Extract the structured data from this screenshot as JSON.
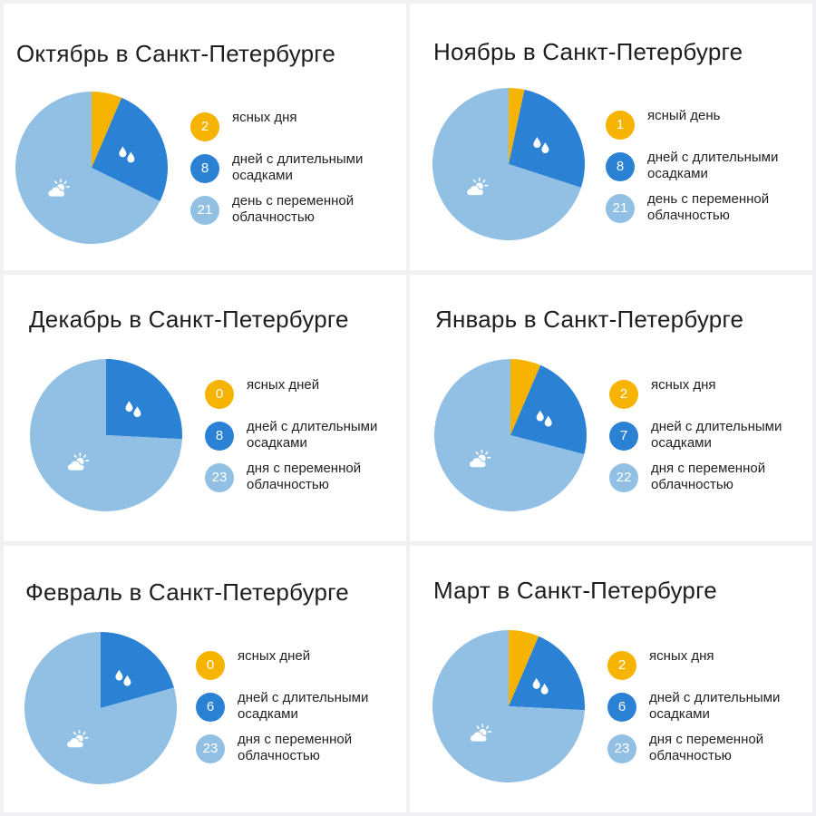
{
  "colors": {
    "sunny": "#f6b400",
    "rain": "#2b82d5",
    "cloudy": "#92c0e4"
  },
  "chart_data": [
    {
      "type": "pie",
      "title": "Октябрь в Санкт-Петербурге",
      "categories": [
        "sunny",
        "rain",
        "cloudy"
      ],
      "values": [
        2,
        8,
        21
      ],
      "legend": [
        {
          "value": "2",
          "text": "ясных дня"
        },
        {
          "value": "8",
          "text": "дней с длительными осадками"
        },
        {
          "value": "21",
          "text": "день с переменной облачностью"
        }
      ]
    },
    {
      "type": "pie",
      "title": "Ноябрь в Санкт-Петербурге",
      "categories": [
        "sunny",
        "rain",
        "cloudy"
      ],
      "values": [
        1,
        8,
        21
      ],
      "legend": [
        {
          "value": "1",
          "text": "ясный день"
        },
        {
          "value": "8",
          "text": "дней с длительными осадками"
        },
        {
          "value": "21",
          "text": "день с переменной облачностью"
        }
      ]
    },
    {
      "type": "pie",
      "title": "Декабрь в Санкт-Петербурге",
      "categories": [
        "sunny",
        "rain",
        "cloudy"
      ],
      "values": [
        0,
        8,
        23
      ],
      "legend": [
        {
          "value": "0",
          "text": "ясных дней"
        },
        {
          "value": "8",
          "text": "дней с длительными осадками"
        },
        {
          "value": "23",
          "text": "дня с переменной облачностью"
        }
      ]
    },
    {
      "type": "pie",
      "title": "Январь в Санкт-Петербурге",
      "categories": [
        "sunny",
        "rain",
        "cloudy"
      ],
      "values": [
        2,
        7,
        22
      ],
      "legend": [
        {
          "value": "2",
          "text": "ясных дня"
        },
        {
          "value": "7",
          "text": "дней с длительными осадками"
        },
        {
          "value": "22",
          "text": "дня с переменной облачностью"
        }
      ]
    },
    {
      "type": "pie",
      "title": "Февраль в Санкт-Петербурге",
      "categories": [
        "sunny",
        "rain",
        "cloudy"
      ],
      "values": [
        0,
        6,
        23
      ],
      "legend": [
        {
          "value": "0",
          "text": "ясных дней"
        },
        {
          "value": "6",
          "text": "дней с длительными осадками"
        },
        {
          "value": "23",
          "text": "дня с переменной облачностью"
        }
      ]
    },
    {
      "type": "pie",
      "title": "Март в Санкт-Петербурге",
      "categories": [
        "sunny",
        "rain",
        "cloudy"
      ],
      "values": [
        2,
        6,
        23
      ],
      "legend": [
        {
          "value": "2",
          "text": "ясных дня"
        },
        {
          "value": "6",
          "text": "дней с длительными осадками"
        },
        {
          "value": "23",
          "text": "дня с переменной облачностью"
        }
      ]
    }
  ]
}
